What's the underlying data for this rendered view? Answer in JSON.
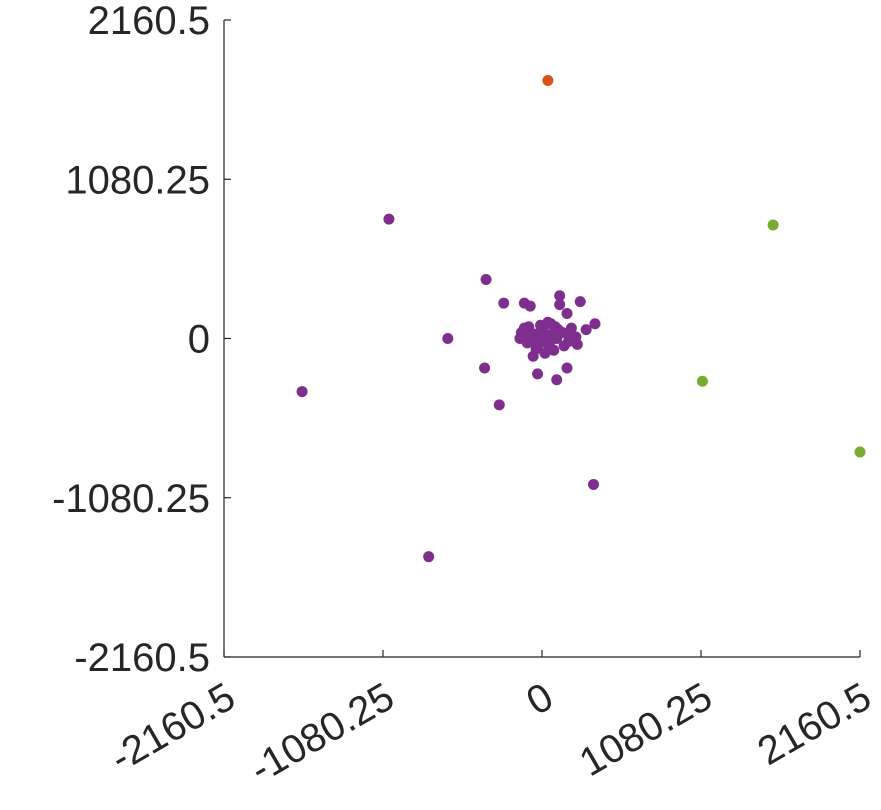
{
  "chart_data": {
    "type": "scatter",
    "title": "",
    "xlabel": "",
    "ylabel": "",
    "xlim": [
      -2160.5,
      2160.5
    ],
    "ylim": [
      -2160.5,
      2160.5
    ],
    "x_ticks": [
      -2160.5,
      -1080.25,
      0,
      1080.25,
      2160.5
    ],
    "x_tick_labels": [
      "-2160.5",
      "-1080.25",
      "0",
      "1080.25",
      "2160.5"
    ],
    "y_ticks": [
      -2160.5,
      -1080.25,
      0,
      1080.25,
      2160.5
    ],
    "y_tick_labels": [
      "-2160.5",
      "-1080.25",
      "0",
      "1080.25",
      "2160.5"
    ],
    "grid": false,
    "legend": "none",
    "series": [
      {
        "color": "#7e2f8e",
        "points": [
          [
            -1040,
            810
          ],
          [
            -1630,
            -360
          ],
          [
            -770,
            -1480
          ],
          [
            -640,
            0
          ],
          [
            -380,
            400
          ],
          [
            -260,
            240
          ],
          [
            -390,
            -200
          ],
          [
            -290,
            -450
          ],
          [
            -120,
            240
          ],
          [
            -80,
            220
          ],
          [
            120,
            290
          ],
          [
            120,
            230
          ],
          [
            260,
            250
          ],
          [
            360,
            100
          ],
          [
            170,
            170
          ],
          [
            -30,
            -240
          ],
          [
            100,
            -280
          ],
          [
            170,
            -200
          ],
          [
            350,
            -990
          ],
          [
            60,
            100
          ],
          [
            0,
            70
          ],
          [
            -80,
            20
          ],
          [
            200,
            70
          ],
          [
            150,
            -50
          ],
          [
            -100,
            -30
          ],
          [
            50,
            -50
          ],
          [
            -140,
            40
          ],
          [
            230,
            10
          ],
          [
            300,
            60
          ],
          [
            -60,
            -120
          ],
          [
            20,
            -100
          ],
          [
            240,
            -40
          ],
          [
            -150,
            0
          ],
          [
            100,
            0
          ],
          [
            -50,
            30
          ],
          [
            70,
            30
          ],
          [
            0,
            0
          ],
          [
            30,
            20
          ],
          [
            -20,
            -40
          ],
          [
            10,
            -20
          ],
          [
            60,
            -10
          ],
          [
            -120,
            70
          ],
          [
            140,
            40
          ],
          [
            90,
            80
          ],
          [
            -90,
            80
          ],
          [
            40,
            110
          ],
          [
            -10,
            90
          ],
          [
            180,
            -20
          ],
          [
            -40,
            -70
          ],
          [
            80,
            -80
          ],
          [
            10,
            50
          ],
          [
            -30,
            10
          ],
          [
            110,
            60
          ],
          [
            200,
            30
          ],
          [
            -70,
            -10
          ]
        ]
      },
      {
        "color": "#d95319",
        "points": [
          [
            40,
            1750
          ]
        ]
      },
      {
        "color": "#77ac30",
        "points": [
          [
            1570,
            770
          ],
          [
            1090,
            -290
          ],
          [
            2160.5,
            -770
          ]
        ]
      }
    ]
  }
}
